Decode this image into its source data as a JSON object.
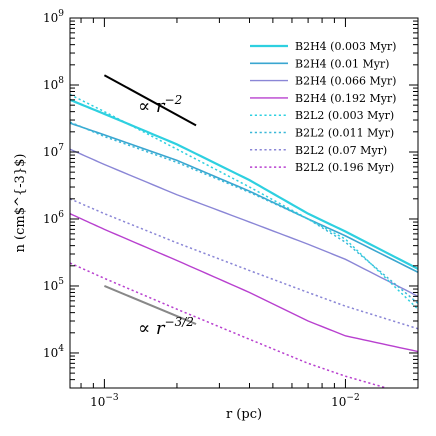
{
  "chart_data": {
    "type": "line",
    "xlabel": "r (pc)",
    "ylabel": "n  (cm$^{-3}$)",
    "xscale": "log",
    "yscale": "log",
    "xlim": [
      0.00072,
      0.02
    ],
    "ylim": [
      3000,
      1000000000
    ],
    "grid": false,
    "legend_position": "top-right",
    "x_major_ticks": [
      {
        "value": 0.001,
        "mantissa": "10",
        "exponent": "−3"
      },
      {
        "value": 0.01,
        "mantissa": "10",
        "exponent": "−2"
      }
    ],
    "y_major_ticks": [
      {
        "value": 10000,
        "mantissa": "10",
        "exponent": "4"
      },
      {
        "value": 100000,
        "mantissa": "10",
        "exponent": "5"
      },
      {
        "value": 1000000,
        "mantissa": "10",
        "exponent": "6"
      },
      {
        "value": 10000000,
        "mantissa": "10",
        "exponent": "7"
      },
      {
        "value": 100000000,
        "mantissa": "10",
        "exponent": "8"
      },
      {
        "value": 1000000000,
        "mantissa": "10",
        "exponent": "9"
      }
    ],
    "series": [
      {
        "name": "B2H4 (0.003 Myr)",
        "color": "#2ed0e0",
        "dash": "solid",
        "width": 2.2,
        "x": [
          0.00072,
          0.001,
          0.002,
          0.004,
          0.007,
          0.01,
          0.02
        ],
        "y": [
          60000000,
          37000000,
          13000000,
          3800000,
          1200000,
          650000,
          180000
        ]
      },
      {
        "name": "B2H4 (0.01 Myr)",
        "color": "#3aa6d0",
        "dash": "solid",
        "width": 1.6,
        "x": [
          0.00072,
          0.001,
          0.002,
          0.004,
          0.007,
          0.01,
          0.02
        ],
        "y": [
          27000000,
          18000000,
          7500000,
          2600000,
          1000000,
          560000,
          160000
        ]
      },
      {
        "name": "B2H4 (0.066 Myr)",
        "color": "#8a86d6",
        "dash": "solid",
        "width": 1.4,
        "x": [
          0.00072,
          0.001,
          0.002,
          0.004,
          0.007,
          0.01,
          0.02
        ],
        "y": [
          11000000,
          6500000,
          2300000,
          900000,
          420000,
          250000,
          70000
        ]
      },
      {
        "name": "B2H4 (0.192 Myr)",
        "color": "#b840cf",
        "dash": "solid",
        "width": 1.4,
        "x": [
          0.00072,
          0.001,
          0.002,
          0.004,
          0.007,
          0.01,
          0.02
        ],
        "y": [
          1200000,
          700000,
          240000,
          80000,
          30000,
          18000,
          10500
        ]
      },
      {
        "name": "B2L2 (0.003 Myr)",
        "color": "#2ed0e0",
        "dash": "dotted",
        "width": 1.5,
        "x": [
          0.00072,
          0.001,
          0.002,
          0.004,
          0.007,
          0.01,
          0.02
        ],
        "y": [
          72000000,
          40000000,
          11000000,
          3000000,
          1000000,
          500000,
          45000
        ]
      },
      {
        "name": "B2L2 (0.011 Myr)",
        "color": "#3ab8d8",
        "dash": "dotted",
        "width": 1.5,
        "x": [
          0.00072,
          0.001,
          0.002,
          0.004,
          0.007,
          0.01,
          0.02
        ],
        "y": [
          28000000,
          17000000,
          7000000,
          2500000,
          1000000,
          450000,
          55000
        ]
      },
      {
        "name": "B2L2 (0.07 Myr)",
        "color": "#8a86d6",
        "dash": "dotted",
        "width": 1.5,
        "x": [
          0.00072,
          0.001,
          0.002,
          0.004,
          0.007,
          0.01,
          0.02
        ],
        "y": [
          2000000,
          1200000,
          440000,
          170000,
          80000,
          50000,
          23000
        ]
      },
      {
        "name": "B2L2 (0.196 Myr)",
        "color": "#b840cf",
        "dash": "dotted",
        "width": 1.5,
        "x": [
          0.00072,
          0.001,
          0.002,
          0.004,
          0.007,
          0.01,
          0.02
        ],
        "y": [
          220000,
          130000,
          45000,
          16000,
          7000,
          4500,
          2200
        ]
      }
    ],
    "reference_lines": [
      {
        "label_prefix": "∝ r",
        "exponent": "−2",
        "color": "#000000",
        "x": [
          0.001,
          0.0024
        ],
        "y": [
          140000000,
          25000000
        ]
      },
      {
        "label_prefix": "∝ r",
        "exponent": "−3/2",
        "color": "#888888",
        "x": [
          0.001,
          0.0024
        ],
        "y": [
          100000,
          27000
        ]
      }
    ]
  }
}
